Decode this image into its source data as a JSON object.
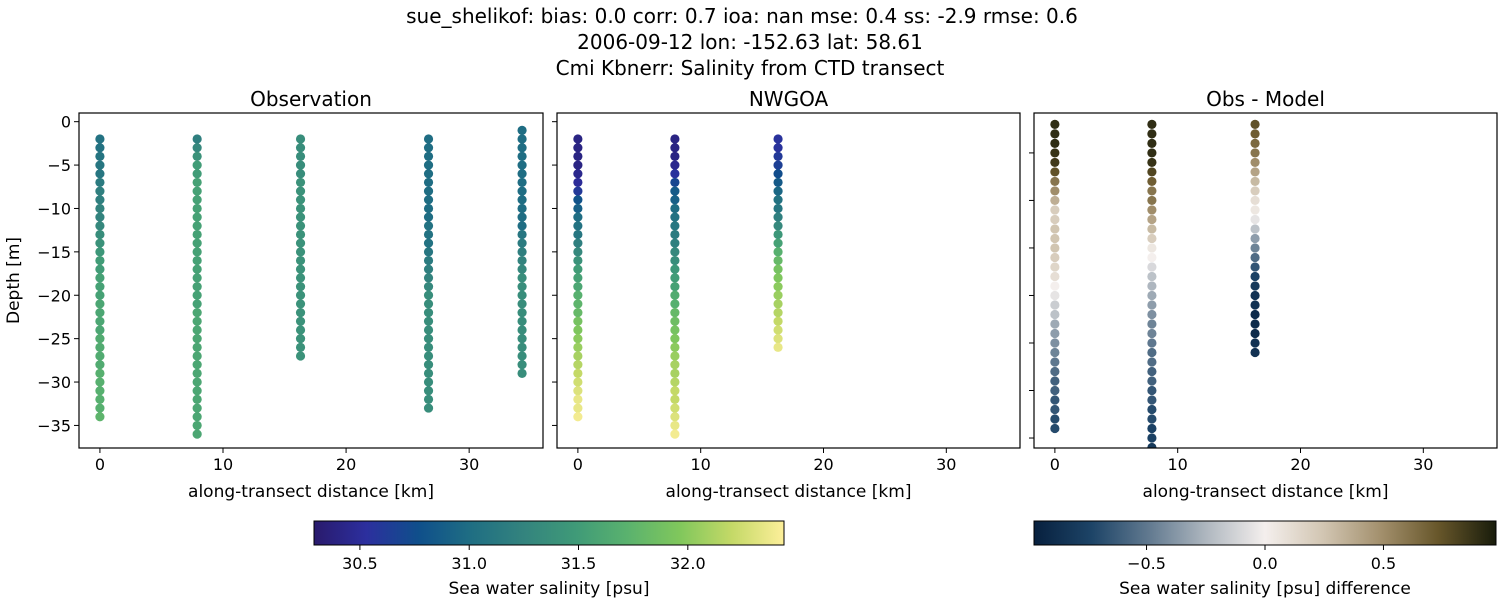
{
  "title_lines": [
    "sue_shelikof: bias: 0.0  corr: 0.7  ioa: nan  mse: 0.4  ss: -2.9  rmse: 0.6",
    "2006-09-12 lon: -152.63 lat: 58.61",
    "Cmi Kbnerr: Salinity from CTD transect"
  ],
  "chart_data": [
    {
      "type": "scatter",
      "title": "Observation",
      "xlabel": "along-transect distance [km]",
      "ylabel": "Depth [m]",
      "xlim": [
        -1.7,
        36.0
      ],
      "ylim": [
        -37.6,
        1.0
      ],
      "xticks": [
        0,
        10,
        20,
        30
      ],
      "yticks": [
        0,
        -5,
        -10,
        -15,
        -20,
        -25,
        -30,
        -35
      ],
      "colormap": "haline",
      "color_range": [
        30.29,
        32.44
      ],
      "columns": [
        {
          "x": 0,
          "depth_range": [
            -2,
            -34
          ],
          "depth_step": 1,
          "values": [
            31.05,
            31.05,
            31.08,
            31.1,
            31.1,
            31.15,
            31.2,
            31.2,
            31.25,
            31.25,
            31.3,
            31.35,
            31.4,
            31.45,
            31.5,
            31.5,
            31.55,
            31.55,
            31.55,
            31.6,
            31.6,
            31.6,
            31.6,
            31.65,
            31.65,
            31.65,
            31.65,
            31.7,
            31.7,
            31.7,
            31.7,
            31.7,
            31.75
          ]
        },
        {
          "x": 7.9,
          "depth_range": [
            -2,
            -36
          ],
          "depth_step": 1,
          "values": [
            31.2,
            31.3,
            31.4,
            31.5,
            31.5,
            31.55,
            31.55,
            31.55,
            31.55,
            31.55,
            31.55,
            31.55,
            31.55,
            31.55,
            31.55,
            31.55,
            31.55,
            31.55,
            31.55,
            31.55,
            31.6,
            31.6,
            31.6,
            31.6,
            31.6,
            31.6,
            31.6,
            31.6,
            31.6,
            31.6,
            31.6,
            31.6,
            31.6,
            31.6,
            31.6
          ]
        },
        {
          "x": 16.3,
          "depth_range": [
            -2,
            -27
          ],
          "depth_step": 1,
          "values": [
            31.35,
            31.35,
            31.35,
            31.35,
            31.35,
            31.4,
            31.4,
            31.4,
            31.4,
            31.4,
            31.4,
            31.4,
            31.4,
            31.4,
            31.4,
            31.4,
            31.4,
            31.4,
            31.4,
            31.4,
            31.4,
            31.4,
            31.4,
            31.4,
            31.4,
            31.4
          ]
        },
        {
          "x": 26.7,
          "depth_range": [
            -2,
            -33
          ],
          "depth_step": 1,
          "values": [
            31.0,
            31.0,
            31.0,
            31.0,
            31.0,
            31.0,
            31.0,
            31.0,
            31.0,
            31.0,
            31.05,
            31.05,
            31.05,
            31.1,
            31.15,
            31.2,
            31.25,
            31.3,
            31.35,
            31.35,
            31.35,
            31.35,
            31.35,
            31.35,
            31.35,
            31.35,
            31.35,
            31.35,
            31.35,
            31.35,
            31.35,
            31.35
          ]
        },
        {
          "x": 34.3,
          "depth_range": [
            -1,
            -29
          ],
          "depth_step": 1,
          "values": [
            31.0,
            31.0,
            31.0,
            31.0,
            31.0,
            31.0,
            31.0,
            31.0,
            31.0,
            31.0,
            31.0,
            31.0,
            31.1,
            31.15,
            31.2,
            31.25,
            31.3,
            31.35,
            31.35,
            31.35,
            31.35,
            31.35,
            31.35,
            31.35,
            31.35,
            31.35,
            31.35,
            31.35,
            31.35
          ]
        }
      ]
    },
    {
      "type": "scatter",
      "title": "NWGOA",
      "xlabel": "along-transect distance [km]",
      "xlim": [
        -1.7,
        36.0
      ],
      "ylim": [
        -37.6,
        1.0
      ],
      "xticks": [
        0,
        10,
        20,
        30
      ],
      "yticks": [
        0,
        -5,
        -10,
        -15,
        -20,
        -25,
        -30,
        -35
      ],
      "colormap": "haline",
      "color_range": [
        30.29,
        32.44
      ],
      "columns": [
        {
          "x": 0,
          "depth_range": [
            -2,
            -34
          ],
          "depth_step": 1,
          "values": [
            30.4,
            30.4,
            30.4,
            30.4,
            30.45,
            30.5,
            30.6,
            30.8,
            30.9,
            31.0,
            31.05,
            31.1,
            31.2,
            31.3,
            31.4,
            31.5,
            31.55,
            31.6,
            31.7,
            31.75,
            31.8,
            31.9,
            31.95,
            32.0,
            32.05,
            32.1,
            32.15,
            32.2,
            32.25,
            32.3,
            32.35,
            32.35,
            32.4
          ]
        },
        {
          "x": 7.9,
          "depth_range": [
            -2,
            -36
          ],
          "depth_step": 1,
          "values": [
            30.4,
            30.4,
            30.4,
            30.45,
            30.55,
            30.7,
            30.85,
            30.9,
            31.0,
            31.05,
            31.1,
            31.15,
            31.2,
            31.3,
            31.35,
            31.45,
            31.5,
            31.55,
            31.65,
            31.7,
            31.8,
            31.85,
            31.9,
            31.95,
            32.0,
            32.05,
            32.1,
            32.1,
            32.15,
            32.2,
            32.2,
            32.25,
            32.3,
            32.35,
            32.4
          ]
        },
        {
          "x": 16.3,
          "depth_range": [
            -2,
            -26
          ],
          "depth_step": 1,
          "values": [
            30.55,
            30.55,
            30.6,
            30.65,
            30.75,
            30.85,
            30.95,
            31.05,
            31.1,
            31.2,
            31.3,
            31.45,
            31.55,
            31.7,
            31.8,
            31.9,
            31.95,
            32.0,
            32.05,
            32.1,
            32.15,
            32.2,
            32.25,
            32.3,
            32.35
          ]
        }
      ]
    },
    {
      "type": "scatter",
      "title": "Obs - Model",
      "xlabel": "along-transect distance [km]",
      "xlim": [
        -1.7,
        36.0
      ],
      "ylim": [
        -36.05,
        -0.8
      ],
      "xticks": [
        0,
        10,
        20,
        30
      ],
      "yticks": [
        -5,
        -10,
        -15,
        -20,
        -25,
        -30,
        -35
      ],
      "ytick_labels_shown": false,
      "colormap": "diff",
      "color_range": [
        -0.975,
        0.975
      ],
      "columns": [
        {
          "x": 0,
          "depth_range": [
            -2,
            -34
          ],
          "depth_step": 1,
          "values": [
            0.9,
            0.9,
            0.9,
            0.88,
            0.85,
            0.75,
            0.6,
            0.5,
            0.35,
            0.2,
            0.2,
            0.25,
            0.25,
            0.25,
            0.2,
            0.15,
            0.1,
            0.0,
            -0.05,
            -0.15,
            -0.2,
            -0.3,
            -0.35,
            -0.4,
            -0.45,
            -0.5,
            -0.55,
            -0.6,
            -0.6,
            -0.65,
            -0.65,
            -0.7,
            -0.7
          ]
        },
        {
          "x": 7.9,
          "depth_range": [
            -2,
            -36
          ],
          "depth_step": 1,
          "values": [
            0.9,
            0.9,
            0.9,
            0.9,
            0.88,
            0.8,
            0.7,
            0.6,
            0.6,
            0.5,
            0.4,
            0.3,
            0.2,
            0.05,
            0.0,
            -0.1,
            -0.2,
            -0.25,
            -0.3,
            -0.35,
            -0.4,
            -0.45,
            -0.45,
            -0.5,
            -0.55,
            -0.55,
            -0.6,
            -0.6,
            -0.65,
            -0.65,
            -0.7,
            -0.7,
            -0.75,
            -0.75,
            -0.8
          ]
        },
        {
          "x": 16.3,
          "depth_range": [
            -2,
            -26
          ],
          "depth_step": 1,
          "values": [
            0.75,
            0.7,
            0.65,
            0.6,
            0.5,
            0.4,
            0.3,
            0.2,
            0.1,
            0.05,
            -0.05,
            -0.2,
            -0.35,
            -0.45,
            -0.55,
            -0.65,
            -0.75,
            -0.8,
            -0.85,
            -0.85,
            -0.9,
            -0.9,
            -0.9,
            -0.85,
            -0.85
          ]
        }
      ]
    }
  ],
  "colorbars": [
    {
      "label": "Sea water salinity [psu]",
      "colormap": "haline",
      "range": [
        30.29,
        32.44
      ],
      "ticks": [
        "30.5",
        "31.0",
        "31.5",
        "32.0"
      ]
    },
    {
      "label": "Sea water salinity [psu] difference",
      "colormap": "diff",
      "range": [
        -0.975,
        0.975
      ],
      "ticks": [
        "−0.5",
        "0.0",
        "0.5"
      ]
    }
  ],
  "colormaps": {
    "haline": [
      "#291a6c",
      "#2c2f9e",
      "#0f4f8b",
      "#1f6e83",
      "#33837e",
      "#3f9a78",
      "#5ab26e",
      "#80c75c",
      "#c4d967",
      "#fdef9a"
    ],
    "diff": [
      "#07203e",
      "#1d4467",
      "#627a90",
      "#b0b8c0",
      "#f4efed",
      "#d2c6b3",
      "#a3906d",
      "#67562a",
      "#181c0b"
    ]
  }
}
